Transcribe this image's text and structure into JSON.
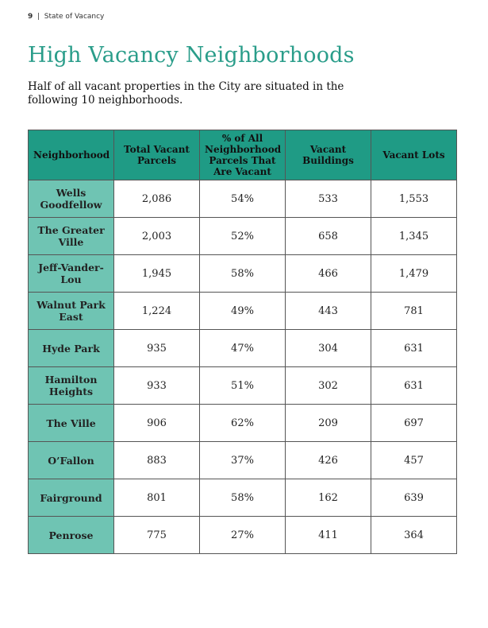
{
  "header": {
    "page_number": "9",
    "section": "State of Vacancy"
  },
  "title": "High Vacancy Neighborhoods",
  "intro": "Half of all vacant properties in the City are situated in the following 10 neighborhoods.",
  "table": {
    "columns": [
      "Neighborhood",
      "Total Vacant Parcels",
      "% of All Neighborhood Parcels That Are Vacant",
      "Vacant Buildings",
      "Vacant Lots"
    ],
    "rows": [
      [
        "Wells Goodfellow",
        "2,086",
        "54%",
        "533",
        "1,553"
      ],
      [
        "The Greater Ville",
        "2,003",
        "52%",
        "658",
        "1,345"
      ],
      [
        "Jeff-Vander-Lou",
        "1,945",
        "58%",
        "466",
        "1,479"
      ],
      [
        "Walnut Park East",
        "1,224",
        "49%",
        "443",
        "781"
      ],
      [
        "Hyde Park",
        "935",
        "47%",
        "304",
        "631"
      ],
      [
        "Hamilton Heights",
        "933",
        "51%",
        "302",
        "631"
      ],
      [
        "The Ville",
        "906",
        "62%",
        "209",
        "697"
      ],
      [
        "O’Fallon",
        "883",
        "37%",
        "426",
        "457"
      ],
      [
        "Fairground",
        "801",
        "58%",
        "162",
        "639"
      ],
      [
        "Penrose",
        "775",
        "27%",
        "411",
        "364"
      ]
    ]
  }
}
